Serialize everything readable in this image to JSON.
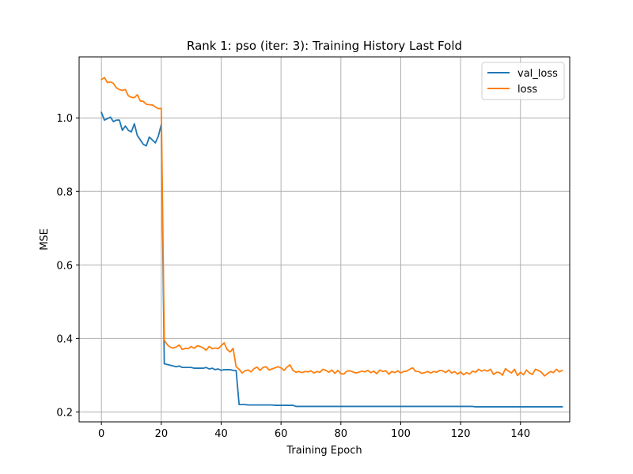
{
  "chart_data": {
    "type": "line",
    "title": "Rank 1: pso (iter: 3): Training History Last Fold",
    "xlabel": "Training Epoch",
    "ylabel": "MSE",
    "xlim": [
      -7.45,
      156.45
    ],
    "ylim": [
      0.173,
      1.166
    ],
    "xticks": [
      0,
      20,
      40,
      60,
      80,
      100,
      120,
      140
    ],
    "yticks": [
      0.2,
      0.4,
      0.6,
      0.8,
      1.0
    ],
    "ytick_labels": [
      "0.2",
      "0.4",
      "0.6",
      "0.8",
      "1.0"
    ],
    "grid": true,
    "legend_position": "top-right",
    "colors": {
      "val_loss": "#1f77b4",
      "loss": "#ff7f0e"
    },
    "series": [
      {
        "name": "val_loss",
        "color": "#1f77b4",
        "values": [
          1.015,
          0.994,
          0.998,
          1.002,
          0.99,
          0.994,
          0.994,
          0.966,
          0.978,
          0.966,
          0.962,
          0.984,
          0.952,
          0.94,
          0.928,
          0.924,
          0.948,
          0.94,
          0.932,
          0.95,
          0.982,
          0.331,
          0.329,
          0.327,
          0.325,
          0.323,
          0.325,
          0.321,
          0.321,
          0.321,
          0.321,
          0.319,
          0.319,
          0.319,
          0.319,
          0.321,
          0.317,
          0.319,
          0.315,
          0.317,
          0.313,
          0.315,
          0.315,
          0.315,
          0.313,
          0.313,
          0.22,
          0.22,
          0.22,
          0.219,
          0.219,
          0.219,
          0.219,
          0.219,
          0.219,
          0.219,
          0.219,
          0.219,
          0.218,
          0.218,
          0.218,
          0.218,
          0.218,
          0.218,
          0.218,
          0.215,
          0.215,
          0.215,
          0.215,
          0.215,
          0.215,
          0.215,
          0.215,
          0.215,
          0.215,
          0.215,
          0.215,
          0.215,
          0.215,
          0.215,
          0.215,
          0.215,
          0.215,
          0.215,
          0.215,
          0.215,
          0.215,
          0.215,
          0.215,
          0.215,
          0.215,
          0.215,
          0.215,
          0.215,
          0.215,
          0.215,
          0.215,
          0.215,
          0.215,
          0.215,
          0.215,
          0.215,
          0.215,
          0.215,
          0.215,
          0.215,
          0.215,
          0.215,
          0.215,
          0.215,
          0.215,
          0.215,
          0.215,
          0.215,
          0.215,
          0.215,
          0.215,
          0.215,
          0.215,
          0.215,
          0.215,
          0.215,
          0.215,
          0.215,
          0.215,
          0.214,
          0.214,
          0.214,
          0.214,
          0.214,
          0.214,
          0.214,
          0.214,
          0.214,
          0.214,
          0.214,
          0.214,
          0.214,
          0.214,
          0.214,
          0.214,
          0.214,
          0.214,
          0.214,
          0.214,
          0.214,
          0.214,
          0.214,
          0.214,
          0.214,
          0.214,
          0.214,
          0.214,
          0.214,
          0.214
        ]
      },
      {
        "name": "loss",
        "color": "#ff7f0e",
        "values": [
          1.104,
          1.11,
          1.096,
          1.098,
          1.094,
          1.082,
          1.077,
          1.075,
          1.077,
          1.06,
          1.056,
          1.055,
          1.063,
          1.046,
          1.045,
          1.037,
          1.036,
          1.035,
          1.03,
          1.025,
          1.026,
          0.395,
          0.383,
          0.376,
          0.374,
          0.377,
          0.382,
          0.37,
          0.373,
          0.372,
          0.378,
          0.373,
          0.38,
          0.378,
          0.374,
          0.368,
          0.378,
          0.372,
          0.374,
          0.372,
          0.38,
          0.388,
          0.37,
          0.363,
          0.373,
          0.323,
          0.316,
          0.306,
          0.312,
          0.314,
          0.309,
          0.318,
          0.322,
          0.313,
          0.321,
          0.323,
          0.314,
          0.317,
          0.32,
          0.323,
          0.32,
          0.313,
          0.322,
          0.328,
          0.313,
          0.308,
          0.31,
          0.307,
          0.31,
          0.309,
          0.312,
          0.306,
          0.31,
          0.308,
          0.316,
          0.313,
          0.308,
          0.314,
          0.305,
          0.313,
          0.304,
          0.303,
          0.311,
          0.312,
          0.309,
          0.306,
          0.308,
          0.311,
          0.309,
          0.313,
          0.307,
          0.311,
          0.304,
          0.314,
          0.31,
          0.312,
          0.303,
          0.31,
          0.307,
          0.312,
          0.306,
          0.31,
          0.311,
          0.316,
          0.32,
          0.31,
          0.31,
          0.305,
          0.307,
          0.31,
          0.306,
          0.31,
          0.308,
          0.313,
          0.312,
          0.307,
          0.314,
          0.306,
          0.31,
          0.303,
          0.309,
          0.301,
          0.307,
          0.303,
          0.311,
          0.308,
          0.316,
          0.311,
          0.314,
          0.311,
          0.316,
          0.302,
          0.308,
          0.307,
          0.3,
          0.318,
          0.311,
          0.306,
          0.316,
          0.299,
          0.308,
          0.301,
          0.314,
          0.306,
          0.302,
          0.316,
          0.313,
          0.308,
          0.298,
          0.304,
          0.31,
          0.307,
          0.316,
          0.309,
          0.313
        ]
      }
    ]
  }
}
